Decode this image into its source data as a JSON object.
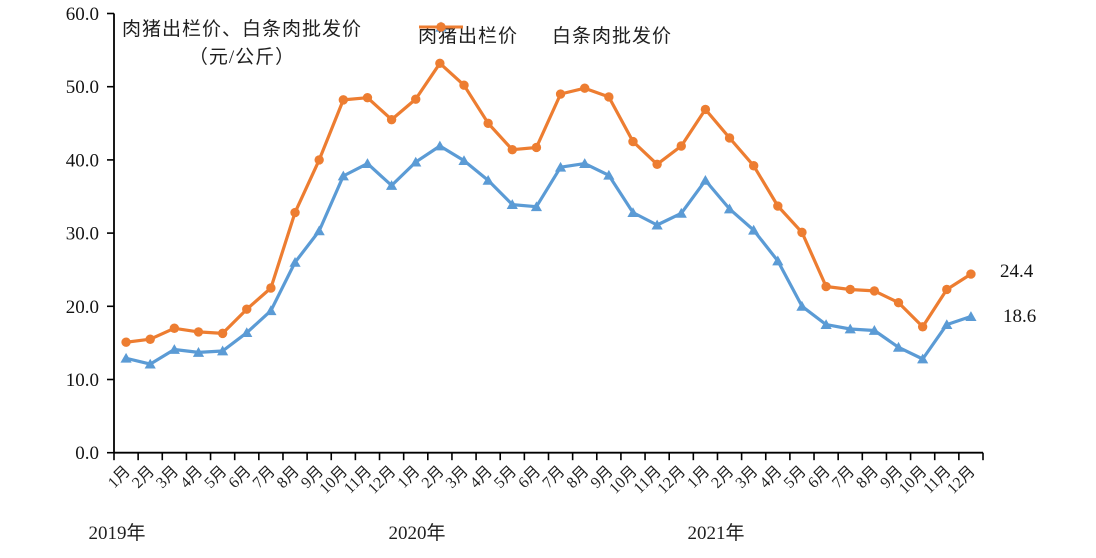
{
  "chart": {
    "title_line1": "肉猪出栏价、白条肉批发价",
    "title_line2": "（元/公斤）",
    "years": [
      "2019年",
      "2020年",
      "2021年"
    ],
    "legend": [
      {
        "label": "肉猪出栏价",
        "marker": "triangle",
        "color": "#5B9BD5"
      },
      {
        "label": "白条肉批发价",
        "marker": "circle",
        "color": "#ED7D31"
      }
    ],
    "end_labels": [
      {
        "text": "24.4",
        "series": "白条肉批发价"
      },
      {
        "text": "18.6",
        "series": "肉猪出栏价"
      }
    ]
  },
  "chart_data": {
    "type": "line",
    "title": "肉猪出栏价、白条肉批发价（元/公斤）",
    "xlabel": "",
    "ylabel": "元/公斤",
    "ylim": [
      0,
      60
    ],
    "ytick_step": 10,
    "ytick_labels": [
      "0.0",
      "10.0",
      "20.0",
      "30.0",
      "40.0",
      "50.0",
      "60.0"
    ],
    "grid": false,
    "legend_position": "top",
    "year_groups": [
      "2019年",
      "2020年",
      "2021年"
    ],
    "categories": [
      "1月",
      "2月",
      "3月",
      "4月",
      "5月",
      "6月",
      "7月",
      "8月",
      "9月",
      "10月",
      "11月",
      "12月",
      "1月",
      "2月",
      "3月",
      "4月",
      "5月",
      "6月",
      "7月",
      "8月",
      "9月",
      "10月",
      "11月",
      "12月",
      "1月",
      "2月",
      "3月",
      "4月",
      "5月",
      "6月",
      "7月",
      "8月",
      "9月",
      "10月",
      "11月",
      "12月"
    ],
    "series": [
      {
        "name": "肉猪出栏价",
        "color": "#5B9BD5",
        "marker": "triangle",
        "values": [
          12.9,
          12.1,
          14.1,
          13.7,
          13.9,
          16.4,
          19.4,
          26.0,
          30.3,
          37.8,
          39.5,
          36.5,
          39.7,
          41.9,
          39.9,
          37.2,
          33.9,
          33.6,
          39.0,
          39.5,
          37.9,
          32.8,
          31.1,
          32.7,
          37.2,
          33.3,
          30.4,
          26.2,
          20.0,
          17.5,
          16.9,
          16.7,
          14.4,
          12.8,
          17.5,
          18.6
        ]
      },
      {
        "name": "白条肉批发价",
        "color": "#ED7D31",
        "marker": "circle",
        "values": [
          15.1,
          15.5,
          17.0,
          16.5,
          16.3,
          19.6,
          22.5,
          32.8,
          40.0,
          48.2,
          48.5,
          45.5,
          48.3,
          53.2,
          50.2,
          45.0,
          41.4,
          41.7,
          49.0,
          49.8,
          48.6,
          42.5,
          39.4,
          41.9,
          46.9,
          43.0,
          39.2,
          33.7,
          30.1,
          22.7,
          22.3,
          22.1,
          20.5,
          17.2,
          22.3,
          24.4
        ]
      }
    ]
  }
}
